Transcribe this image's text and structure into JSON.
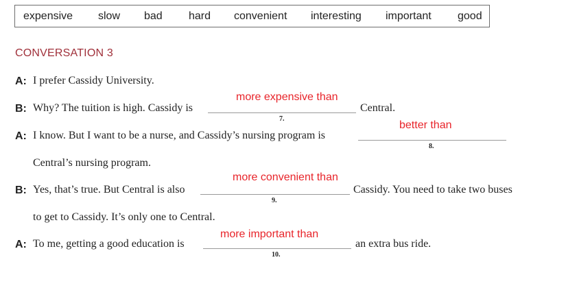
{
  "word_box": [
    "expensive",
    "slow",
    "bad",
    "hard",
    "convenient",
    "interesting",
    "important",
    "good"
  ],
  "heading": "CONVERSATION 3",
  "lines": {
    "l1": {
      "speaker": "A:",
      "text": "I prefer Cassidy University."
    },
    "l2": {
      "speaker": "B:",
      "before": "Why? The tuition is high. Cassidy is",
      "answer": "more expensive than",
      "num": "7.",
      "after": "Central."
    },
    "l3": {
      "speaker": "A:",
      "before": "I know. But I want to be a nurse, and Cassidy’s nursing program is",
      "answer": "better than",
      "num": "8."
    },
    "l3b": {
      "text": "Central’s nursing program."
    },
    "l4": {
      "speaker": "B:",
      "before": "Yes, that’s true. But Central is also",
      "answer": "more convenient than",
      "num": "9.",
      "after": "Cassidy. You need to take two buses"
    },
    "l4b": {
      "text": "to get to Cassidy. It’s only one to Central."
    },
    "l5": {
      "speaker": "A:",
      "before": "To me, getting a good education is",
      "answer": "more important than",
      "num": "10.",
      "after": "an extra bus ride."
    }
  },
  "colors": {
    "heading": "#a0303a",
    "answer": "#e8242a"
  }
}
